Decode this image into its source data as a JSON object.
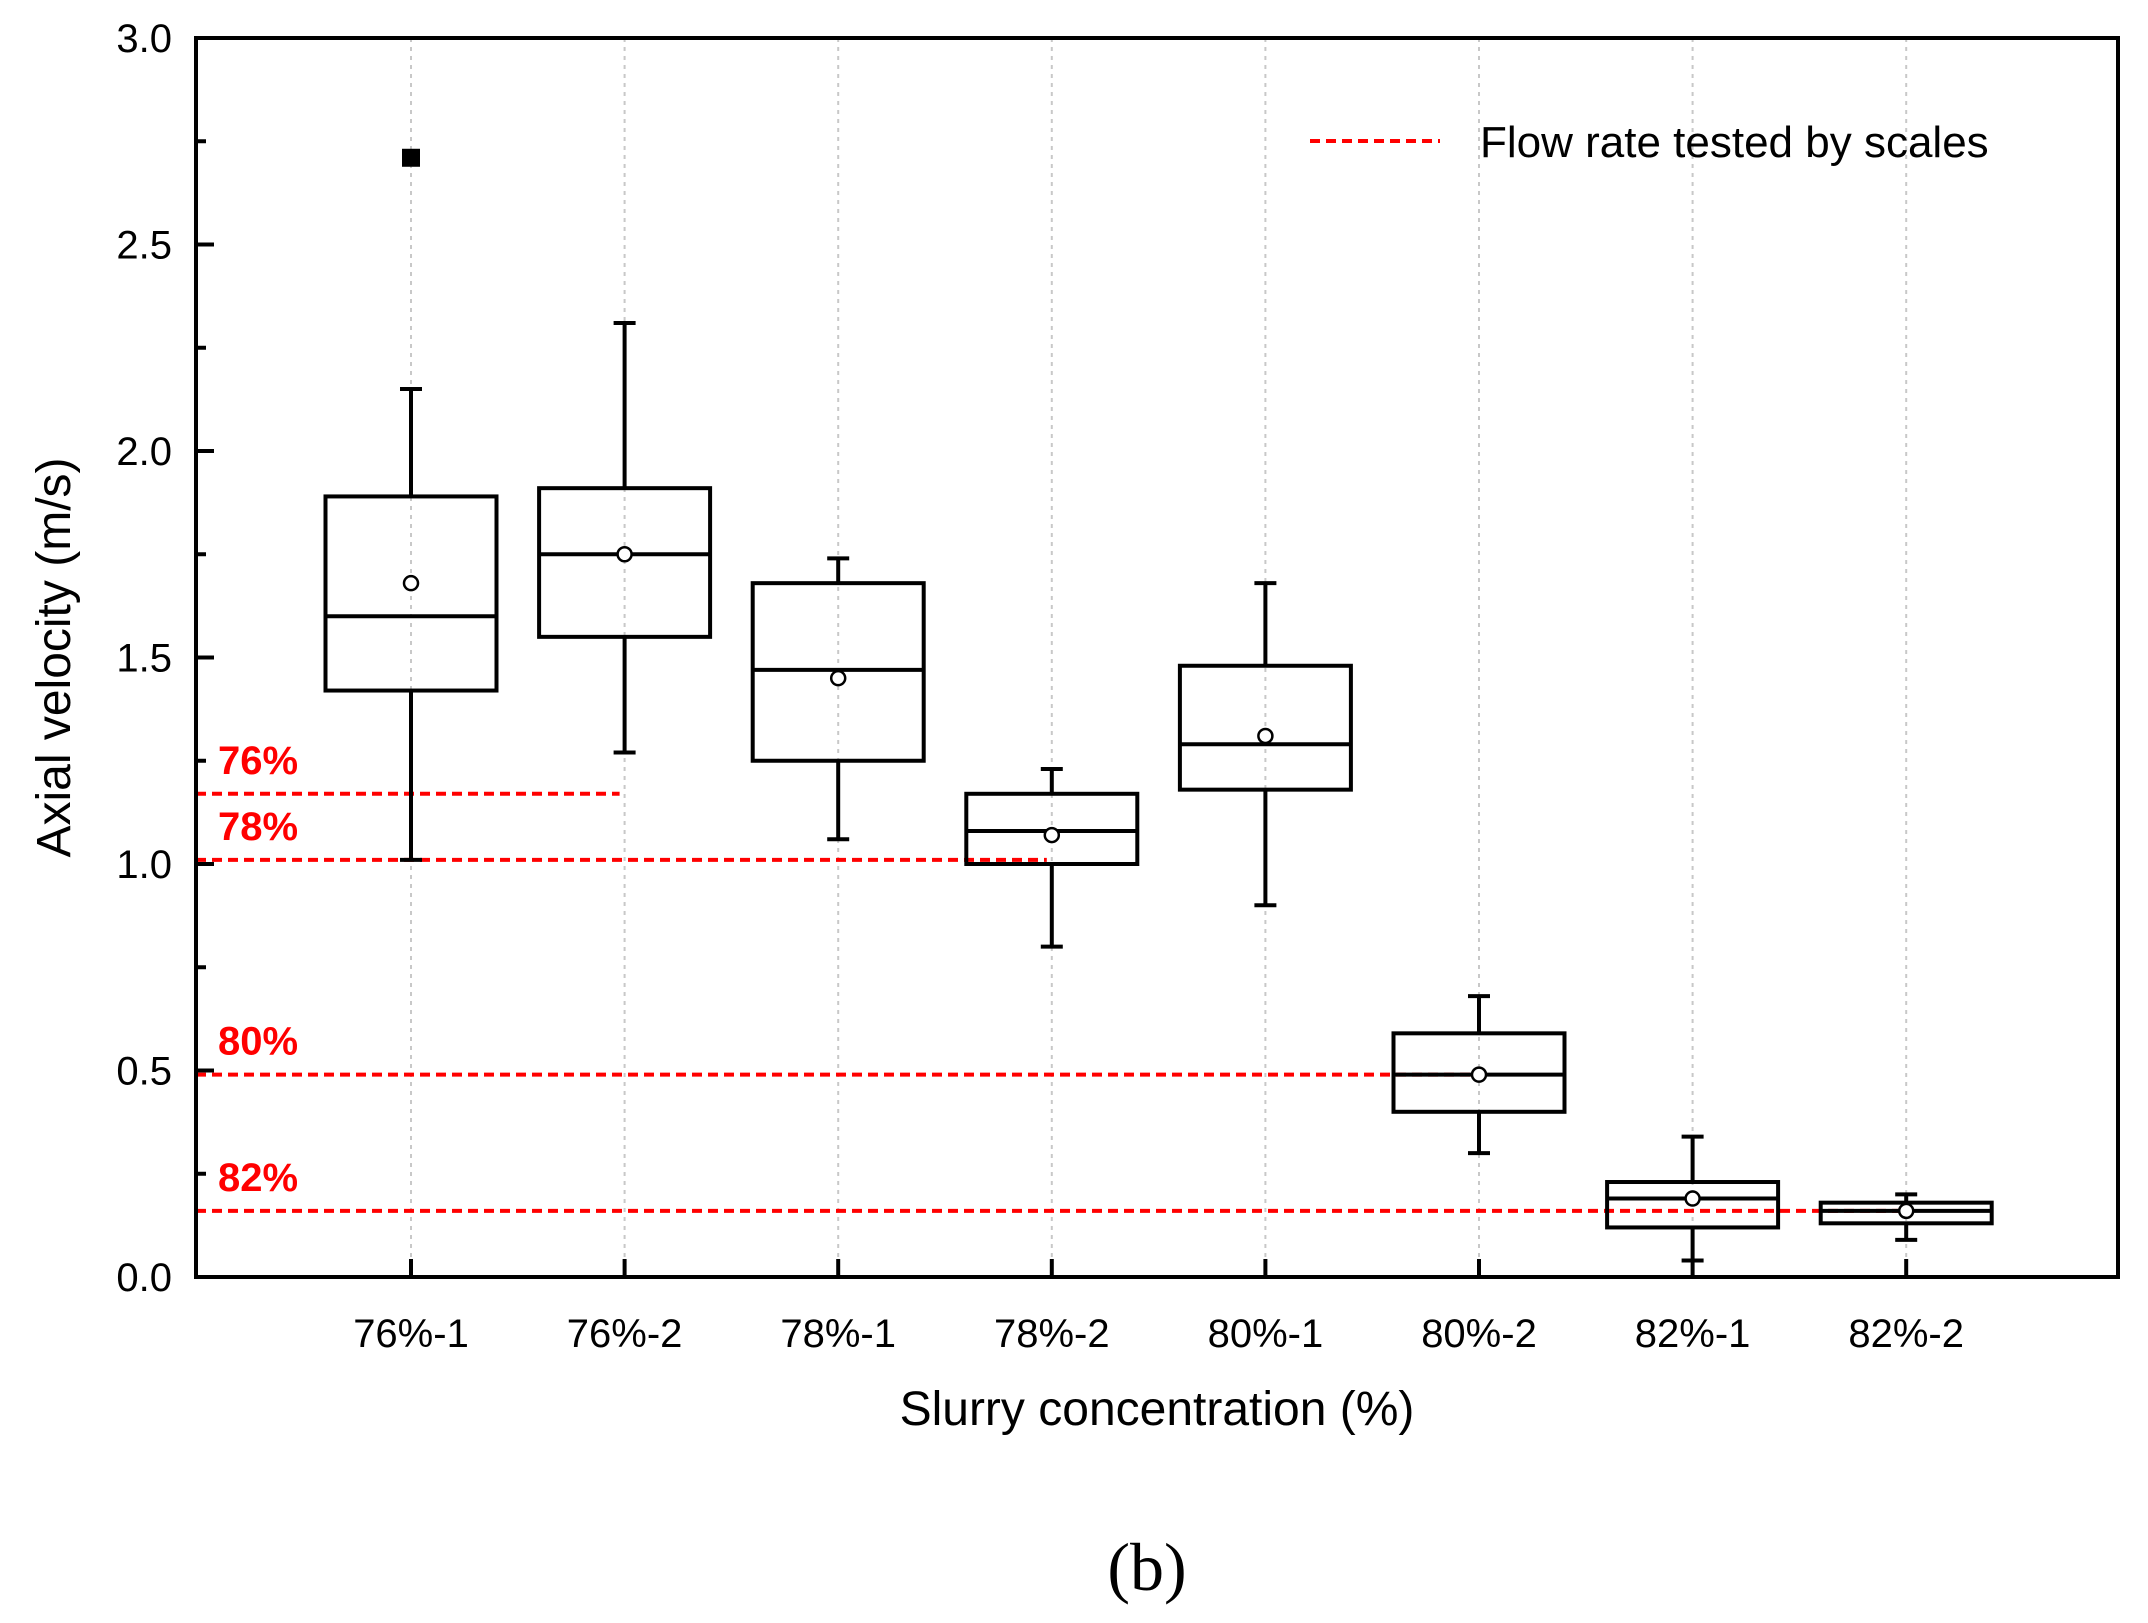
{
  "chart_data": {
    "type": "box",
    "title": "",
    "xlabel": "Slurry concentration (%)",
    "ylabel": "Axial velocity (m/s)",
    "ylim": [
      0,
      3
    ],
    "yticks": [
      0.0,
      0.5,
      1.0,
      1.5,
      2.0,
      2.5,
      3.0
    ],
    "ytick_labels": [
      "0.0",
      "0.5",
      "1.0",
      "1.5",
      "2.0",
      "2.5",
      "3.0"
    ],
    "categories": [
      "76%-1",
      "76%-2",
      "78%-1",
      "78%-2",
      "80%-1",
      "80%-2",
      "82%-1",
      "82%-2"
    ],
    "boxes": [
      {
        "label": "76%-1",
        "whisker_low": 1.01,
        "q1": 1.42,
        "median": 1.6,
        "q3": 1.89,
        "whisker_high": 2.15,
        "mean": 1.68,
        "outliers": [
          2.71
        ]
      },
      {
        "label": "76%-2",
        "whisker_low": 1.27,
        "q1": 1.55,
        "median": 1.75,
        "q3": 1.91,
        "whisker_high": 2.31,
        "mean": 1.75,
        "outliers": []
      },
      {
        "label": "78%-1",
        "whisker_low": 1.06,
        "q1": 1.25,
        "median": 1.47,
        "q3": 1.68,
        "whisker_high": 1.74,
        "mean": 1.45,
        "outliers": []
      },
      {
        "label": "78%-2",
        "whisker_low": 0.8,
        "q1": 1.0,
        "median": 1.08,
        "q3": 1.17,
        "whisker_high": 1.23,
        "mean": 1.07,
        "outliers": []
      },
      {
        "label": "80%-1",
        "whisker_low": 0.9,
        "q1": 1.18,
        "median": 1.29,
        "q3": 1.48,
        "whisker_high": 1.68,
        "mean": 1.31,
        "outliers": []
      },
      {
        "label": "80%-2",
        "whisker_low": 0.3,
        "q1": 0.4,
        "median": 0.49,
        "q3": 0.59,
        "whisker_high": 0.68,
        "mean": 0.49,
        "outliers": []
      },
      {
        "label": "82%-1",
        "whisker_low": 0.04,
        "q1": 0.12,
        "median": 0.19,
        "q3": 0.23,
        "whisker_high": 0.34,
        "mean": 0.19,
        "outliers": []
      },
      {
        "label": "82%-2",
        "whisker_low": 0.09,
        "q1": 0.13,
        "median": 0.16,
        "q3": 0.18,
        "whisker_high": 0.2,
        "mean": 0.16,
        "outliers": []
      }
    ],
    "reference_lines": [
      {
        "label": "76%",
        "value": 1.17,
        "end_category_index": 1
      },
      {
        "label": "78%",
        "value": 1.01,
        "end_category_index": 3
      },
      {
        "label": "80%",
        "value": 0.49,
        "end_category_index": 5
      },
      {
        "label": "82%",
        "value": 0.16,
        "end_category_index": 7
      }
    ],
    "legend": {
      "entries": [
        {
          "label": "Flow rate tested by scales",
          "style": "red dashed line"
        }
      ],
      "position": "top-right"
    },
    "grid": "vertical dotted at categories",
    "colors": {
      "reference": "#ff0000",
      "box": "#000000",
      "grid": "#c8c8c8"
    }
  },
  "panel_label": "(b)"
}
